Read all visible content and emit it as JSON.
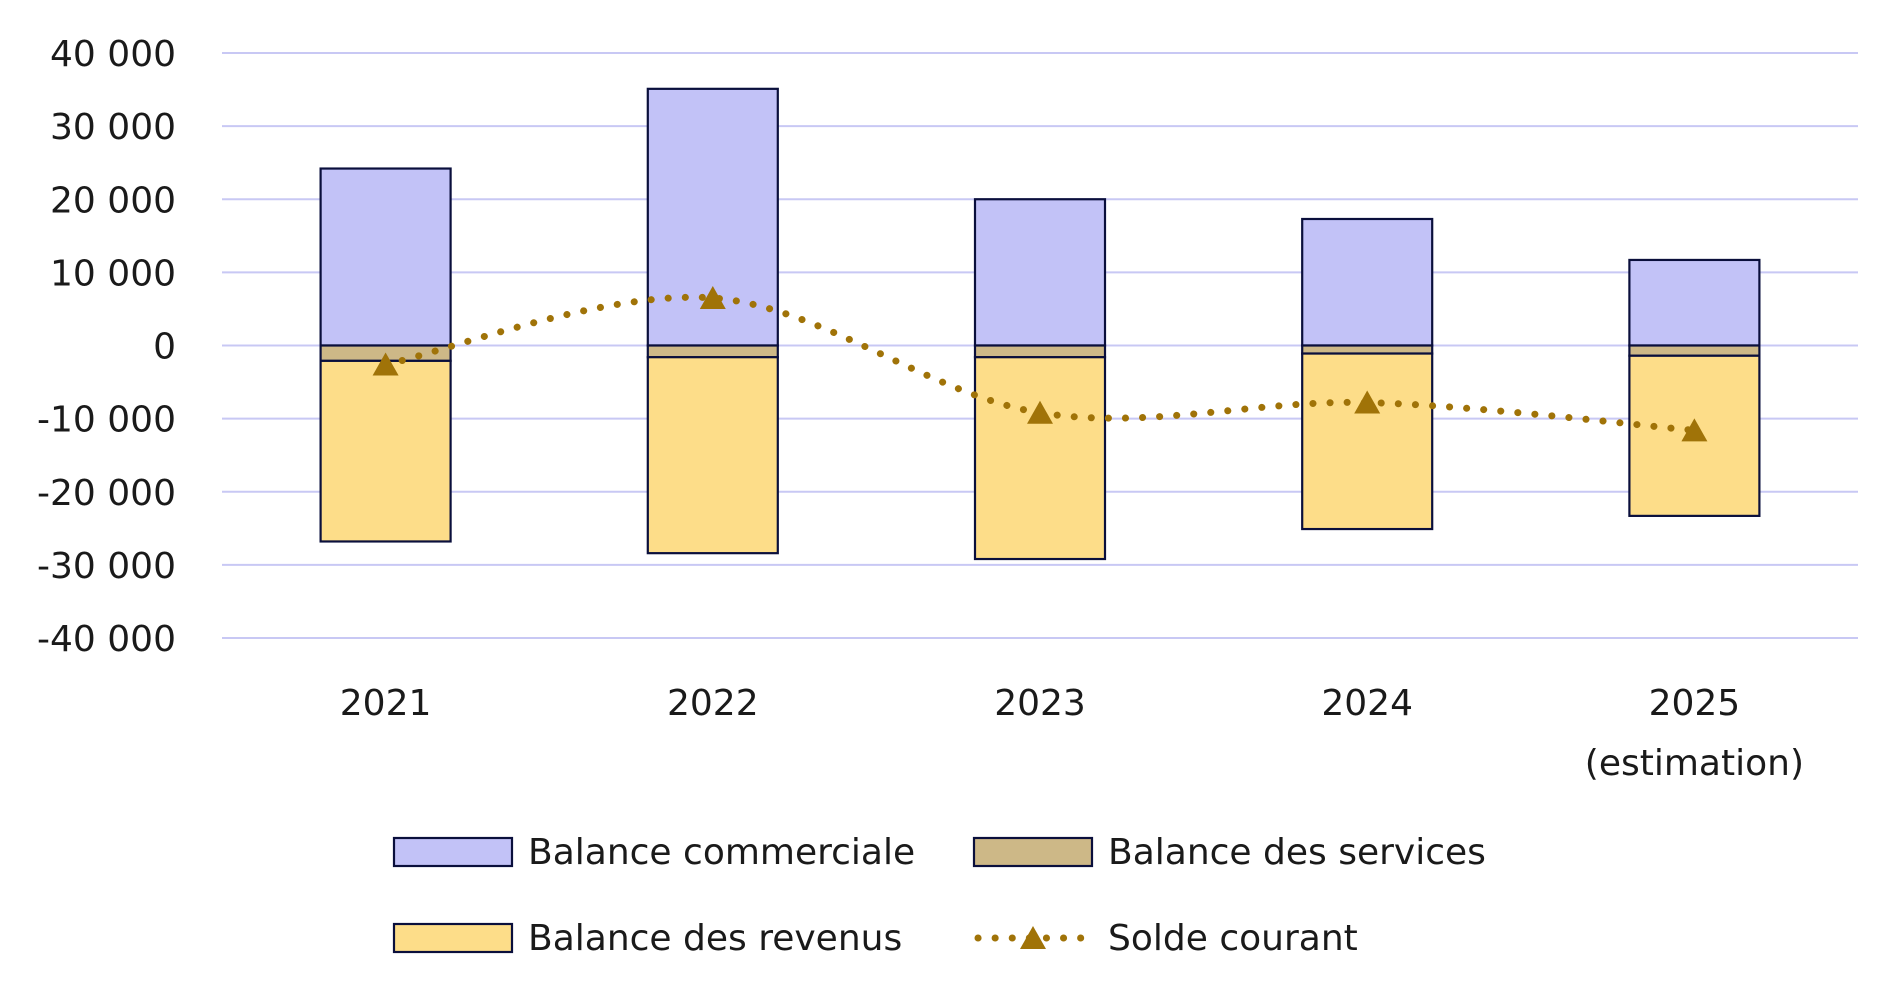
{
  "colors": {
    "trade": "#c2c2f7",
    "services": "#cdb887",
    "income": "#fddd89",
    "current_account": "#a07308",
    "gridline": "#c8c8f4",
    "bar_border": "#0a0f3c",
    "text": "#1a1a1a"
  },
  "chart_data": {
    "type": "bar",
    "stacked": true,
    "title": "",
    "xlabel": "",
    "ylabel": "",
    "ylim": [
      -40000,
      40000
    ],
    "yticks": [
      40000,
      30000,
      20000,
      10000,
      0,
      -10000,
      -20000,
      -30000,
      -40000
    ],
    "ytick_labels": [
      "40 000",
      "30 000",
      "20 000",
      "10 000",
      "0",
      "-10 000",
      "-20 000",
      "-30 000",
      "-40 000"
    ],
    "categories": [
      [
        "2021"
      ],
      [
        "2022"
      ],
      [
        "2023"
      ],
      [
        "2024"
      ],
      [
        "2025",
        "(estimation)"
      ]
    ],
    "grid": true,
    "legend_position": "bottom",
    "series": [
      {
        "name": "Balance commerciale",
        "kind": "bar",
        "color_key": "trade",
        "values": [
          24200,
          35100,
          20000,
          17300,
          11700
        ]
      },
      {
        "name": "Balance des services",
        "kind": "bar",
        "color_key": "services",
        "values": [
          -2100,
          -1600,
          -1600,
          -1100,
          -1400
        ]
      },
      {
        "name": "Balance des revenus",
        "kind": "bar",
        "color_key": "income",
        "values": [
          -24700,
          -26800,
          -27600,
          -24000,
          -21900
        ]
      },
      {
        "name": "Solde courant",
        "kind": "line",
        "style": "dotted",
        "marker": "triangle",
        "color_key": "current_account",
        "values": [
          -2600,
          6500,
          -9200,
          -7800,
          -11600
        ]
      }
    ]
  }
}
